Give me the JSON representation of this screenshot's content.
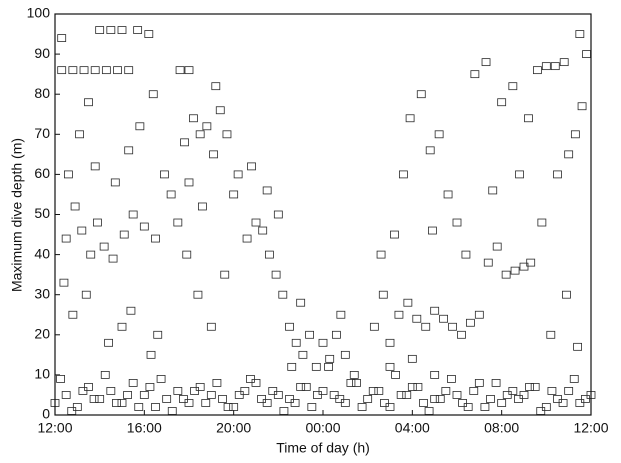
{
  "chart_data": {
    "type": "scatter",
    "x_label": "Time of day (h)",
    "y_label": "Maximum dive depth (m)",
    "xlim": [
      0,
      24
    ],
    "xticks": [
      {
        "value": 0,
        "label": "12:00"
      },
      {
        "value": 4,
        "label": "16:00"
      },
      {
        "value": 8,
        "label": "20:00"
      },
      {
        "value": 12,
        "label": "00:00"
      },
      {
        "value": 16,
        "label": "04:00"
      },
      {
        "value": 20,
        "label": "08:00"
      },
      {
        "value": 24,
        "label": "12:00"
      }
    ],
    "ylim": [
      0,
      100
    ],
    "yticks": [
      0,
      10,
      20,
      30,
      40,
      50,
      60,
      70,
      80,
      90,
      100
    ],
    "color": "#2a2a2a",
    "x": [
      0,
      0.5,
      1,
      1.5,
      2,
      2.5,
      3,
      3.5,
      4,
      4.5,
      5,
      5.5,
      6,
      6.5,
      7,
      7.5,
      8,
      8.5,
      9,
      9.5,
      10,
      10.5,
      11,
      11.5,
      12,
      12.5,
      13,
      13.5,
      14,
      14.5,
      15,
      15.5,
      16,
      16.5,
      17,
      17.5,
      18,
      18.5,
      19,
      19.5,
      20,
      20.5,
      21,
      21.5,
      22,
      22.5,
      23,
      23.5,
      24,
      0.25,
      0.75,
      1.25,
      1.75,
      2.25,
      2.75,
      3.25,
      3.75,
      4.25,
      4.75,
      5.25,
      5.75,
      6.25,
      6.75,
      7.25,
      7.75,
      8.25,
      8.75,
      9.25,
      9.75,
      10.25,
      10.75,
      11.25,
      11.75,
      12.25,
      12.75,
      13.25,
      13.75,
      14.25,
      14.75,
      15.25,
      15.75,
      16.25,
      16.75,
      17.25,
      17.75,
      18.25,
      18.75,
      19.25,
      19.75,
      20.25,
      20.75,
      21.25,
      21.75,
      22.25,
      22.75,
      23.25,
      23.75,
      0.3,
      0.8,
      1.3,
      1.8,
      2.3,
      2.8,
      3.3,
      5.6,
      6.0,
      0.3,
      2.0,
      2.5,
      3.0,
      3.7,
      4.2,
      0.5,
      0.9,
      1.2,
      1.6,
      1.9,
      2.2,
      2.6,
      3.1,
      3.5,
      4.0,
      4.5,
      0.6,
      1.1,
      1.5,
      0.8,
      1.4,
      2.4,
      3.0,
      3.4,
      4.6,
      4.3,
      4.9,
      5.2,
      5.5,
      0.4,
      1.8,
      2.7,
      3.3,
      3.8,
      4.4,
      5.8,
      6.2,
      6.5,
      6.8,
      7.1,
      7.4,
      7.7,
      6.0,
      6.6,
      7.2,
      5.9,
      6.4,
      7.0,
      7.6,
      8.0,
      8.2,
      8.6,
      9.0,
      9.3,
      9.6,
      9.9,
      10.2,
      10.5,
      10.8,
      11.1,
      11.4,
      11.7,
      12.0,
      12.3,
      12.6,
      13.0,
      13.4,
      10.0,
      9.5,
      8.8,
      11.0,
      10.6,
      12.8,
      14.3,
      14.7,
      15.0,
      15.4,
      15.8,
      16.2,
      16.6,
      17.0,
      17.4,
      17.8,
      18.2,
      18.6,
      19.0,
      14.6,
      15.2,
      15.6,
      15.9,
      16.4,
      16.8,
      17.2,
      17.6,
      18.0,
      18.4,
      15.0,
      16.0,
      17.0,
      16.9,
      19.4,
      19.8,
      20.2,
      20.6,
      21.0,
      21.3,
      21.6,
      22.0,
      22.4,
      22.8,
      20.0,
      20.5,
      21.2,
      20.8,
      19.6,
      21.8,
      22.5,
      23.0,
      23.3,
      23.6,
      23.8,
      23.5,
      22.2,
      22.9,
      23.4,
      19.3,
      18.8
    ],
    "values": [
      3,
      5,
      2,
      7,
      4,
      6,
      3,
      8,
      5,
      2,
      4,
      6,
      3,
      7,
      5,
      4,
      2,
      6,
      8,
      3,
      5,
      4,
      7,
      2,
      6,
      5,
      3,
      8,
      4,
      6,
      2,
      5,
      7,
      3,
      4,
      6,
      5,
      2,
      8,
      4,
      3,
      6,
      5,
      7,
      2,
      4,
      6,
      3,
      5,
      9,
      1,
      6,
      4,
      10,
      3,
      5,
      2,
      7,
      9,
      1,
      4,
      6,
      3,
      8,
      2,
      5,
      9,
      4,
      6,
      1,
      3,
      7,
      5,
      12,
      4,
      8,
      2,
      6,
      3,
      10,
      5,
      7,
      1,
      4,
      9,
      3,
      6,
      2,
      8,
      5,
      4,
      7,
      1,
      6,
      3,
      9,
      4,
      86,
      86,
      86,
      86,
      86,
      86,
      86,
      86,
      86,
      94,
      96,
      96,
      96,
      96,
      95,
      44,
      52,
      46,
      40,
      48,
      42,
      39,
      45,
      50,
      47,
      44,
      60,
      70,
      78,
      25,
      30,
      18,
      22,
      26,
      20,
      15,
      60,
      55,
      48,
      33,
      62,
      58,
      66,
      72,
      80,
      68,
      74,
      70,
      72,
      65,
      76,
      70,
      58,
      52,
      82,
      40,
      30,
      22,
      35,
      55,
      60,
      44,
      48,
      46,
      40,
      35,
      30,
      22,
      18,
      15,
      20,
      12,
      18,
      14,
      20,
      15,
      10,
      50,
      56,
      62,
      28,
      12,
      25,
      22,
      30,
      18,
      25,
      28,
      24,
      22,
      26,
      24,
      22,
      20,
      23,
      25,
      40,
      45,
      60,
      74,
      80,
      66,
      70,
      55,
      48,
      40,
      12,
      14,
      10,
      46,
      38,
      42,
      35,
      36,
      37,
      38,
      86,
      87,
      87,
      88,
      78,
      82,
      74,
      60,
      56,
      48,
      60,
      65,
      70,
      77,
      90,
      95,
      20,
      30,
      17,
      88,
      85
    ]
  }
}
